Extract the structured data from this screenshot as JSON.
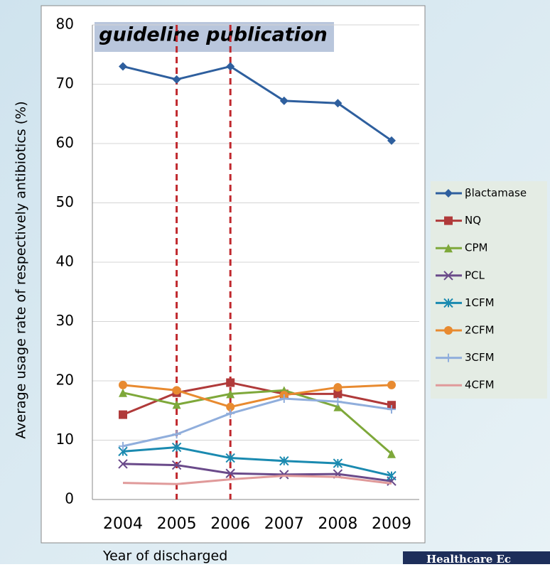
{
  "chart_data": {
    "type": "line",
    "y_label": "Average usage rate of respectively antibiotics (%)",
    "x_label": "Year of discharged",
    "annotation": "guideline publication",
    "footer": "Healthcare Ec",
    "categories": [
      "2004",
      "2005",
      "2006",
      "2007",
      "2008",
      "2009"
    ],
    "vlines": [
      "2005",
      "2006"
    ],
    "vline_color": "#c0282d",
    "ylim": [
      0,
      80
    ],
    "yticks": [
      0,
      10,
      20,
      30,
      40,
      50,
      60,
      70,
      80
    ],
    "grid": true,
    "series": [
      {
        "name": "βlactamase",
        "color": "#2e5f9e",
        "marker": "diamond",
        "values": [
          73,
          70.8,
          73,
          67.2,
          66.8,
          60.5
        ]
      },
      {
        "name": "NQ",
        "color": "#b03a3a",
        "marker": "square",
        "values": [
          14.3,
          18,
          19.7,
          17.8,
          17.8,
          15.9
        ]
      },
      {
        "name": "CPM",
        "color": "#7ea83a",
        "marker": "triangle",
        "values": [
          18,
          16,
          17.8,
          18.4,
          15.6,
          7.7
        ]
      },
      {
        "name": "PCL",
        "color": "#6a4a8a",
        "marker": "x",
        "values": [
          6,
          5.8,
          4.4,
          4.2,
          4.3,
          3.1
        ]
      },
      {
        "name": "1CFM",
        "color": "#1a8ab0",
        "marker": "star",
        "values": [
          8.1,
          8.8,
          7,
          6.5,
          6.1,
          4
        ]
      },
      {
        "name": "2CFM",
        "color": "#e88a30",
        "marker": "circle",
        "values": [
          19.3,
          18.4,
          15.6,
          17.6,
          18.9,
          19.3
        ]
      },
      {
        "name": "3CFM",
        "color": "#90aedc",
        "marker": "plus",
        "values": [
          9,
          11,
          14.5,
          17,
          16.5,
          15.2
        ]
      },
      {
        "name": "4CFM",
        "color": "#e09a9a",
        "marker": "none",
        "values": [
          2.8,
          2.6,
          3.4,
          4,
          3.8,
          2.7
        ]
      }
    ]
  }
}
